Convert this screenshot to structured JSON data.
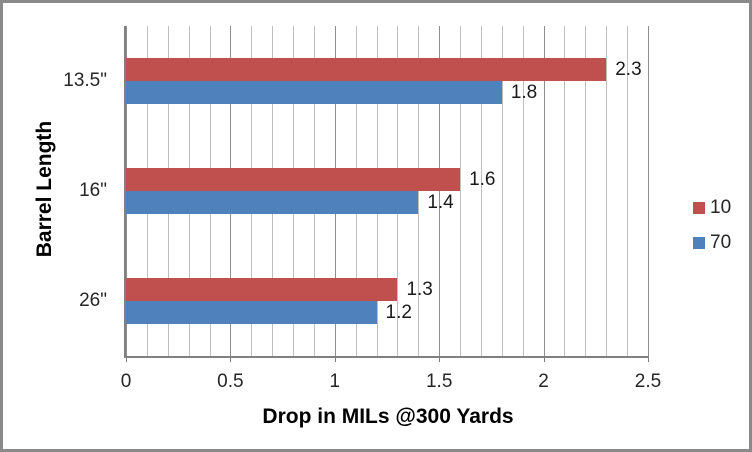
{
  "chart_data": {
    "type": "bar",
    "orientation": "horizontal",
    "title": "",
    "categories": [
      "13.5\"",
      "16\"",
      "26\""
    ],
    "series": [
      {
        "name": "10",
        "color": "#C0504D",
        "values": [
          2.3,
          1.6,
          1.3
        ]
      },
      {
        "name": "70",
        "color": "#4F81BD",
        "values": [
          1.8,
          1.4,
          1.2
        ]
      }
    ],
    "xlabel": "Drop in MILs @300 Yards",
    "ylabel": "Barrel Length",
    "xlim": [
      0,
      2.5
    ],
    "x_ticks": [
      "0",
      "0.5",
      "1",
      "1.5",
      "2",
      "2.5"
    ],
    "x_tick_values": [
      0,
      0.5,
      1,
      1.5,
      2,
      2.5
    ],
    "minor_grid_step": 0.1,
    "grid": true,
    "data_labels": true,
    "legend_position": "right"
  },
  "legend": {
    "items": [
      {
        "label": "10",
        "color": "#C0504D"
      },
      {
        "label": "70",
        "color": "#4F81BD"
      }
    ]
  },
  "colors": {
    "frame_border": "#8a8a8a",
    "gridline_minor": "#bfbfbf",
    "gridline_major": "#8f8f8f",
    "axis_line": "#808080",
    "series_red": "#C0504D",
    "series_blue": "#4F81BD",
    "text": "#1a1a1a"
  }
}
